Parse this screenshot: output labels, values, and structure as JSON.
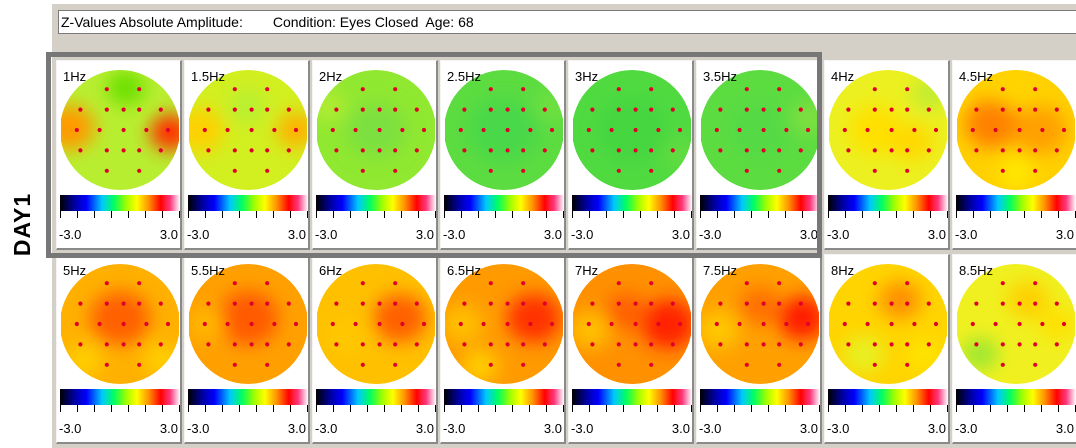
{
  "side_label": "DAY1",
  "header": {
    "measure": "Z-Values Absolute Amplitude:",
    "condition": "Condition: Eyes Closed",
    "age": "Age: 68"
  },
  "scale": {
    "min": "-3.0",
    "max": "3.0"
  },
  "rows": [
    [
      {
        "freq": "1Hz",
        "base": "#b8ee30",
        "blobs": [
          [
            0.08,
            0.48,
            0.42,
            "#ff9a00"
          ],
          [
            0.92,
            0.52,
            0.34,
            "#ff3000"
          ],
          [
            0.55,
            0.15,
            0.32,
            "#6ce000"
          ]
        ]
      },
      {
        "freq": "1.5Hz",
        "base": "#d2ef20",
        "blobs": [
          [
            0.1,
            0.5,
            0.4,
            "#ffd000"
          ],
          [
            0.9,
            0.5,
            0.32,
            "#ffb000"
          ],
          [
            0.5,
            0.3,
            0.32,
            "#b8f030"
          ]
        ]
      },
      {
        "freq": "2Hz",
        "base": "#90e830",
        "blobs": [
          [
            0.5,
            0.5,
            0.5,
            "#7ce040"
          ],
          [
            0.1,
            0.3,
            0.3,
            "#b0ec30"
          ]
        ]
      },
      {
        "freq": "2.5Hz",
        "base": "#5cdc40",
        "blobs": [
          [
            0.5,
            0.5,
            0.6,
            "#4ad84a"
          ],
          [
            0.9,
            0.3,
            0.3,
            "#70e040"
          ]
        ]
      },
      {
        "freq": "3Hz",
        "base": "#50da40",
        "blobs": [
          [
            0.5,
            0.5,
            0.6,
            "#44d640"
          ],
          [
            0.9,
            0.7,
            0.3,
            "#62dc40"
          ]
        ]
      },
      {
        "freq": "3.5Hz",
        "base": "#5cdc40",
        "blobs": [
          [
            0.5,
            0.5,
            0.55,
            "#54da44"
          ],
          [
            0.9,
            0.4,
            0.3,
            "#80e040"
          ]
        ]
      },
      {
        "freq": "4Hz",
        "base": "#ecf020",
        "blobs": [
          [
            0.4,
            0.5,
            0.45,
            "#ffe000"
          ],
          [
            0.85,
            0.2,
            0.3,
            "#c0ec30"
          ],
          [
            0.7,
            0.6,
            0.35,
            "#ffd800"
          ]
        ]
      },
      {
        "freq": "4.5Hz",
        "base": "#ffd000",
        "blobs": [
          [
            0.3,
            0.45,
            0.45,
            "#ff8000"
          ],
          [
            0.7,
            0.5,
            0.45,
            "#ffa000"
          ],
          [
            0.5,
            0.15,
            0.35,
            "#ffd400"
          ],
          [
            0.5,
            0.85,
            0.3,
            "#ffe800"
          ]
        ]
      }
    ],
    [
      {
        "freq": "5Hz",
        "base": "#ffb000",
        "blobs": [
          [
            0.5,
            0.45,
            0.5,
            "#ff6000"
          ],
          [
            0.2,
            0.8,
            0.3,
            "#ffd000"
          ],
          [
            0.85,
            0.8,
            0.3,
            "#ffd000"
          ]
        ]
      },
      {
        "freq": "5.5Hz",
        "base": "#ffa000",
        "blobs": [
          [
            0.5,
            0.45,
            0.5,
            "#ff5a00"
          ],
          [
            0.15,
            0.5,
            0.3,
            "#ffb800"
          ]
        ]
      },
      {
        "freq": "6Hz",
        "base": "#ffc000",
        "blobs": [
          [
            0.25,
            0.6,
            0.35,
            "#ffc800"
          ],
          [
            0.7,
            0.45,
            0.45,
            "#ff6000"
          ]
        ]
      },
      {
        "freq": "6.5Hz",
        "base": "#ff9a00",
        "blobs": [
          [
            0.75,
            0.45,
            0.45,
            "#ff3000"
          ],
          [
            0.15,
            0.5,
            0.35,
            "#ffc000"
          ],
          [
            0.3,
            0.85,
            0.3,
            "#ffd000"
          ]
        ]
      },
      {
        "freq": "7Hz",
        "base": "#ff9000",
        "blobs": [
          [
            0.8,
            0.5,
            0.45,
            "#ff2000"
          ],
          [
            0.15,
            0.55,
            0.35,
            "#ffc000"
          ],
          [
            0.45,
            0.4,
            0.35,
            "#ff6000"
          ]
        ]
      },
      {
        "freq": "7.5Hz",
        "base": "#ffa000",
        "blobs": [
          [
            0.85,
            0.45,
            0.4,
            "#ff1a00"
          ],
          [
            0.15,
            0.55,
            0.35,
            "#ffc800"
          ],
          [
            0.5,
            0.35,
            0.35,
            "#ff7000"
          ]
        ]
      },
      {
        "freq": "8Hz",
        "base": "#ffd400",
        "blobs": [
          [
            0.6,
            0.3,
            0.35,
            "#ff9000"
          ],
          [
            0.3,
            0.75,
            0.35,
            "#e8f020"
          ],
          [
            0.8,
            0.75,
            0.3,
            "#ffe400"
          ]
        ]
      },
      {
        "freq": "8.5Hz",
        "base": "#f0f020",
        "blobs": [
          [
            0.2,
            0.75,
            0.3,
            "#9ce830"
          ],
          [
            0.6,
            0.3,
            0.35,
            "#ffd000"
          ],
          [
            0.85,
            0.5,
            0.3,
            "#ffe000"
          ]
        ]
      }
    ]
  ]
}
